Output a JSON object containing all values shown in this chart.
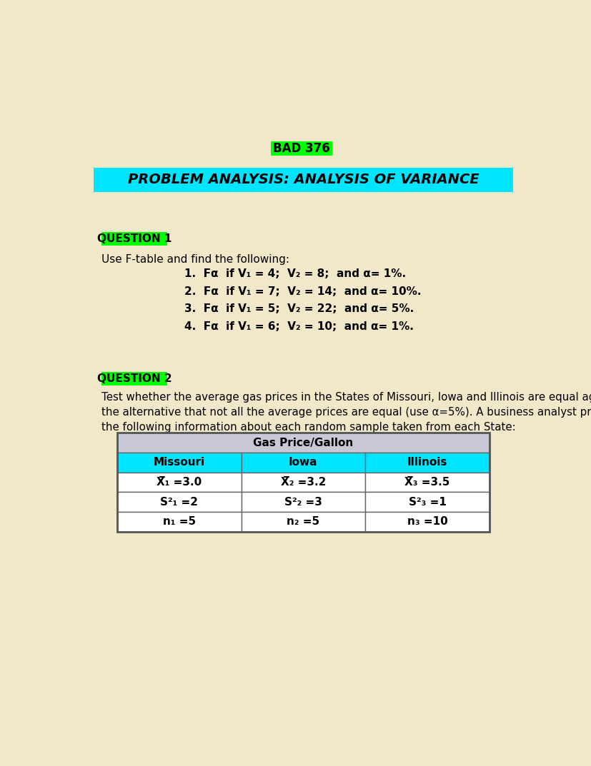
{
  "background_color": "#f0e8c8",
  "title_badge_text": "BAD 376",
  "title_badge_bg": "#00ff00",
  "title_badge_color": "#000000",
  "main_title": "PROBLEM ANALYSIS: ANALYSIS OF VARIANCE",
  "main_title_bg": "#00e5ff",
  "main_title_color": "#000000",
  "q1_label": "QUESTION 1",
  "q1_label_bg": "#00ff00",
  "q1_label_color": "#000000",
  "q1_intro": "Use F-table and find the following:",
  "q1_items": [
    "1.  Fα  if V₁ = 4;  V₂ = 8;  and α= 1%.",
    "2.  Fα  if V₁ = 7;  V₂ = 14;  and α= 10%.",
    "3.  Fα  if V₁ = 5;  V₂ = 22;  and α= 5%.",
    "4.  Fα  if V₁ = 6;  V₂ = 10;  and α= 1%."
  ],
  "q2_label": "QUESTION 2",
  "q2_label_bg": "#00ff00",
  "q2_label_color": "#000000",
  "q2_text": "Test whether the average gas prices in the States of Missouri, Iowa and Illinois are equal against\nthe alternative that not all the average prices are equal (use α=5%). A business analyst provided\nthe following information about each random sample taken from each State:",
  "table_title": "Gas Price/Gallon",
  "table_title_bg": "#c8c8d8",
  "table_header_bg": "#00e5ff",
  "table_headers": [
    "Missouri",
    "Iowa",
    "Illinois"
  ],
  "table_row1": [
    "X̅₁ =3.0",
    "X̅₂ =3.2",
    "X̅₃ =3.5"
  ],
  "table_row2": [
    "S²₁ =2",
    "S²₂ =3",
    "S²₃ =1"
  ],
  "table_row3": [
    "n₁ =5",
    "n₂ =5",
    "n₃ =10"
  ],
  "fig_w": 8.28,
  "fig_h": 10.73,
  "dpi": 100
}
